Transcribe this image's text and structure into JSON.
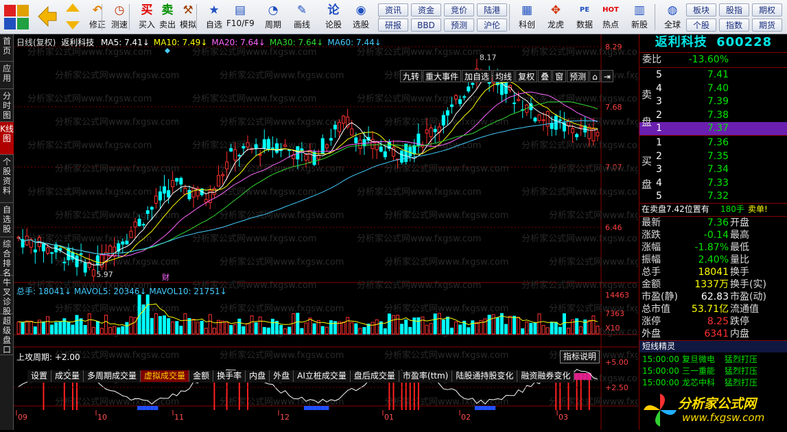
{
  "toolbar": {
    "buttons": [
      {
        "label": "修正",
        "icon": "redo-icon",
        "glyph": "↶",
        "color": "#e08000"
      },
      {
        "label": "测速",
        "icon": "clock-icon",
        "glyph": "◷",
        "color": "#c03000"
      },
      {
        "label": "买入",
        "icon": "buy-icon",
        "glyph": "买",
        "color": "#e00000"
      },
      {
        "label": "卖出",
        "icon": "sell-icon",
        "glyph": "卖",
        "color": "#009000"
      },
      {
        "label": "模拟",
        "icon": "hammer-icon",
        "glyph": "⚒",
        "color": "#a04000"
      },
      {
        "label": "自选",
        "icon": "star-icon",
        "glyph": "★",
        "color": "#2050c0"
      },
      {
        "label": "F10/F9",
        "icon": "f10-icon",
        "glyph": "▤",
        "color": "#2050c0"
      },
      {
        "label": "周期",
        "icon": "period-icon",
        "glyph": "◔",
        "color": "#2050c0"
      },
      {
        "label": "画线",
        "icon": "pen-icon",
        "glyph": "✎",
        "color": "#2050c0"
      },
      {
        "label": "论股",
        "icon": "discuss-icon",
        "glyph": "论",
        "color": "#2050c0"
      },
      {
        "label": "选股",
        "icon": "gauge-icon",
        "glyph": "◉",
        "color": "#2050c0"
      },
      {
        "label": "科创",
        "icon": "kechuang-icon",
        "glyph": "▦",
        "color": "#2050c0"
      },
      {
        "label": "龙虎",
        "icon": "dragon-icon",
        "glyph": "✥",
        "color": "#d03000"
      },
      {
        "label": "数据",
        "icon": "pe-icon",
        "glyph": "PE",
        "color": "#2050c0"
      },
      {
        "label": "热点",
        "icon": "hot-icon",
        "glyph": "HOT",
        "color": "#e00000"
      },
      {
        "label": "新股",
        "icon": "newstock-icon",
        "glyph": "▥",
        "color": "#2050c0"
      },
      {
        "label": "全球",
        "icon": "globe-icon",
        "glyph": "◍",
        "color": "#2050c0"
      }
    ],
    "small_buttons": [
      [
        "资讯",
        "资金",
        "竞价",
        "陆港"
      ],
      [
        "研报",
        "BBD",
        "预测",
        "沪伦"
      ],
      [
        "板块",
        "股指",
        "期权"
      ],
      [
        "个股",
        "指数",
        "期货"
      ]
    ]
  },
  "left_tabs": [
    "首页",
    "应用",
    "分时图",
    "K线图",
    "个股资料",
    "自选股",
    "综合排名",
    "牛叉诊股",
    "超级盘口"
  ],
  "left_tabs_active": "K线图",
  "main_chart": {
    "info_title": "日线(复权)",
    "stock_name": "返利科技",
    "ma": [
      {
        "label": "MA5: 7.41",
        "color": "#ffffff"
      },
      {
        "label": "MA10: 7.49",
        "color": "#ffff00"
      },
      {
        "label": "MA20: 7.64",
        "color": "#ff66ff"
      },
      {
        "label": "MA30: 7.64",
        "color": "#33dd33"
      },
      {
        "label": "MA60: 7.44",
        "color": "#44ccff"
      }
    ],
    "indicator_buttons": [
      "九转",
      "重大事件",
      "加自选",
      "均线",
      "复权",
      "叠",
      "窗",
      "预测"
    ],
    "price_axis": [
      "8.29",
      "7.68",
      "7.07",
      "6.46"
    ],
    "high_marker": "8.17",
    "low_marker": "5.97",
    "fin_marker": "财",
    "watermark": "分析家公式网www.fxgsw.com"
  },
  "volume": {
    "info": "总手: 18041↓ MAVOL5: 20346↓ MAVOL10: 21751↓",
    "axis": [
      "14463",
      "7363",
      "X10"
    ],
    "tabs": [
      "设置",
      "成交量",
      "多周期成交量",
      "虚拟成交量",
      "金额",
      "换手率",
      "内盘",
      "外盘",
      "AI立桩成交量",
      "盘后成交量",
      "市盈率(ttm)",
      "陆股通持股变化",
      "融资融券变化"
    ],
    "active_tab": "虚拟成交量"
  },
  "indicator": {
    "title": "上攻周期: +2.00",
    "button": "指标说明",
    "axis": [
      "+5.00",
      "+2.50"
    ]
  },
  "months": [
    "09",
    "10",
    "11",
    "12",
    "01",
    "02",
    "03"
  ],
  "chart_data": {
    "type": "candlestick",
    "x": [
      "09",
      "10",
      "11",
      "12",
      "01",
      "02",
      "03"
    ],
    "ylim": [
      5.9,
      8.29
    ],
    "y_ticks": [
      8.29,
      7.68,
      7.07,
      6.46
    ],
    "high": 8.17,
    "low": 5.97,
    "last_ma": {
      "MA5": 7.41,
      "MA10": 7.49,
      "MA20": 7.64,
      "MA30": 7.64,
      "MA60": 7.44
    }
  },
  "quote": {
    "name": "返利科技",
    "code": "600228",
    "ratio_label": "委比",
    "ratio_value": "-13.60%",
    "sell_label": "卖盘",
    "buy_label": "买盘",
    "sell": [
      {
        "n": "5",
        "p": "7.41"
      },
      {
        "n": "4",
        "p": "7.40"
      },
      {
        "n": "3",
        "p": "7.39"
      },
      {
        "n": "2",
        "p": "7.38"
      },
      {
        "n": "1",
        "p": "7.37"
      }
    ],
    "buy": [
      {
        "n": "1",
        "p": "7.36"
      },
      {
        "n": "2",
        "p": "7.35"
      },
      {
        "n": "3",
        "p": "7.34"
      },
      {
        "n": "4",
        "p": "7.33"
      },
      {
        "n": "5",
        "p": "7.32"
      }
    ],
    "note": "在卖盘7.42位置有",
    "note_qty": "180手",
    "note_action": "卖单!",
    "stats": [
      {
        "l": "最新",
        "v": "7.36",
        "r": "开盘",
        "c": "#00e600"
      },
      {
        "l": "涨跌",
        "v": "-0.14",
        "r": "最高",
        "c": "#00e600"
      },
      {
        "l": "涨幅",
        "v": "-1.87%",
        "r": "最低",
        "c": "#00e600"
      },
      {
        "l": "振幅",
        "v": "2.40%",
        "r": "量比",
        "c": "#00e600"
      },
      {
        "l": "总手",
        "v": "18041",
        "r": "换手",
        "c": "#ffff00"
      },
      {
        "l": "金额",
        "v": "1337万",
        "r": "换手(实)",
        "c": "#ffff00"
      },
      {
        "l": "市盈(静)",
        "v": "62.83",
        "r": "市盈(动)",
        "c": "#ffffff"
      },
      {
        "l": "总市值",
        "v": "53.71亿",
        "r": "流通值",
        "c": "#ffff00"
      },
      {
        "l": "涨停",
        "v": "8.25",
        "r": "跌停",
        "c": "#ff3030"
      },
      {
        "l": "外盘",
        "v": "6341",
        "r": "内盘",
        "c": "#ff3030"
      }
    ]
  },
  "short_news": {
    "title": "短线精灵",
    "items": [
      {
        "t": "15:00:00",
        "n": "复旦微电",
        "s": "猛烈打压"
      },
      {
        "t": "15:00:00",
        "n": "三一重能",
        "s": "猛烈打压"
      },
      {
        "t": "15:00:00",
        "n": "龙芯中科",
        "s": "猛烈打压"
      }
    ]
  },
  "logo": {
    "text": "分析家公式网",
    "url": "www.fxgsw.com"
  }
}
